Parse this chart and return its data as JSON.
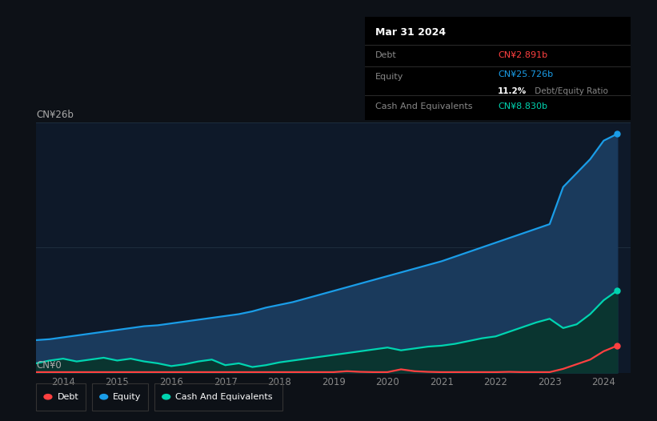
{
  "background_color": "#0d1117",
  "plot_bg_color": "#0e1929",
  "title_box": {
    "date": "Mar 31 2024",
    "debt_label": "Debt",
    "debt_value": "CN¥2.891b",
    "debt_color": "#ff4040",
    "equity_label": "Equity",
    "equity_value": "CN¥25.726b",
    "equity_color": "#1a9de8",
    "ratio_bold": "11.2%",
    "ratio_rest": " Debt/Equity Ratio",
    "cash_label": "Cash And Equivalents",
    "cash_value": "CN¥8.830b",
    "cash_color": "#00d4b0",
    "box_bg": "#000000",
    "box_text_color": "#888888"
  },
  "ylabel_top": "CN¥26b",
  "ylabel_bottom": "CN¥0",
  "x_ticks": [
    "2014",
    "2015",
    "2016",
    "2017",
    "2018",
    "2019",
    "2020",
    "2021",
    "2022",
    "2023",
    "2024"
  ],
  "grid_color": "#1e2d3d",
  "line_colors": {
    "debt": "#ff4040",
    "equity": "#1a9de8",
    "cash": "#00d4b0"
  },
  "fill_colors": {
    "equity": "#1a3a5c",
    "cash": "#0a3530"
  },
  "legend": [
    {
      "label": "Debt",
      "color": "#ff4040"
    },
    {
      "label": "Equity",
      "color": "#1a9de8"
    },
    {
      "label": "Cash And Equivalents",
      "color": "#00d4b0"
    }
  ],
  "equity_data": {
    "x": [
      2013.5,
      2013.75,
      2014.0,
      2014.25,
      2014.5,
      2014.75,
      2015.0,
      2015.25,
      2015.5,
      2015.75,
      2016.0,
      2016.25,
      2016.5,
      2016.75,
      2017.0,
      2017.25,
      2017.5,
      2017.75,
      2018.0,
      2018.25,
      2018.5,
      2018.75,
      2019.0,
      2019.25,
      2019.5,
      2019.75,
      2020.0,
      2020.25,
      2020.5,
      2020.75,
      2021.0,
      2021.25,
      2021.5,
      2021.75,
      2022.0,
      2022.25,
      2022.5,
      2022.75,
      2023.0,
      2023.25,
      2023.5,
      2023.75,
      2024.0,
      2024.25
    ],
    "y": [
      3.5,
      3.6,
      3.8,
      4.0,
      4.2,
      4.4,
      4.6,
      4.8,
      5.0,
      5.1,
      5.3,
      5.5,
      5.7,
      5.9,
      6.1,
      6.3,
      6.6,
      7.0,
      7.3,
      7.6,
      8.0,
      8.4,
      8.8,
      9.2,
      9.6,
      10.0,
      10.4,
      10.8,
      11.2,
      11.6,
      12.0,
      12.5,
      13.0,
      13.5,
      14.0,
      14.5,
      15.0,
      15.5,
      16.0,
      20.0,
      21.5,
      23.0,
      25.0,
      25.726
    ]
  },
  "cash_data": {
    "x": [
      2013.5,
      2013.75,
      2014.0,
      2014.25,
      2014.5,
      2014.75,
      2015.0,
      2015.25,
      2015.5,
      2015.75,
      2016.0,
      2016.25,
      2016.5,
      2016.75,
      2017.0,
      2017.25,
      2017.5,
      2017.75,
      2018.0,
      2018.25,
      2018.5,
      2018.75,
      2019.0,
      2019.25,
      2019.5,
      2019.75,
      2020.0,
      2020.25,
      2020.5,
      2020.75,
      2021.0,
      2021.25,
      2021.5,
      2021.75,
      2022.0,
      2022.25,
      2022.5,
      2022.75,
      2023.0,
      2023.25,
      2023.5,
      2023.75,
      2024.0,
      2024.25
    ],
    "y": [
      1.0,
      1.3,
      1.5,
      1.2,
      1.4,
      1.6,
      1.3,
      1.5,
      1.2,
      1.0,
      0.7,
      0.9,
      1.2,
      1.4,
      0.8,
      1.0,
      0.6,
      0.8,
      1.1,
      1.3,
      1.5,
      1.7,
      1.9,
      2.1,
      2.3,
      2.5,
      2.7,
      2.4,
      2.6,
      2.8,
      2.9,
      3.1,
      3.4,
      3.7,
      3.9,
      4.4,
      4.9,
      5.4,
      5.8,
      4.8,
      5.2,
      6.3,
      7.8,
      8.83
    ]
  },
  "debt_data": {
    "x": [
      2013.5,
      2013.75,
      2014.0,
      2014.25,
      2014.5,
      2014.75,
      2015.0,
      2015.25,
      2015.5,
      2015.75,
      2016.0,
      2016.25,
      2016.5,
      2016.75,
      2017.0,
      2017.25,
      2017.5,
      2017.75,
      2018.0,
      2018.25,
      2018.5,
      2018.75,
      2019.0,
      2019.25,
      2019.5,
      2019.75,
      2020.0,
      2020.25,
      2020.5,
      2020.75,
      2021.0,
      2021.25,
      2021.5,
      2021.75,
      2022.0,
      2022.25,
      2022.5,
      2022.75,
      2023.0,
      2023.25,
      2023.5,
      2023.75,
      2024.0,
      2024.25
    ],
    "y": [
      0.05,
      0.05,
      0.05,
      0.05,
      0.05,
      0.05,
      0.05,
      0.05,
      0.05,
      0.05,
      0.05,
      0.05,
      0.05,
      0.05,
      0.05,
      0.05,
      0.05,
      0.05,
      0.05,
      0.05,
      0.05,
      0.05,
      0.05,
      0.15,
      0.08,
      0.05,
      0.05,
      0.35,
      0.15,
      0.08,
      0.05,
      0.05,
      0.05,
      0.05,
      0.05,
      0.08,
      0.05,
      0.05,
      0.05,
      0.4,
      0.9,
      1.4,
      2.3,
      2.891
    ]
  },
  "ylim": [
    0,
    27
  ],
  "xlim": [
    2013.5,
    2024.5
  ]
}
